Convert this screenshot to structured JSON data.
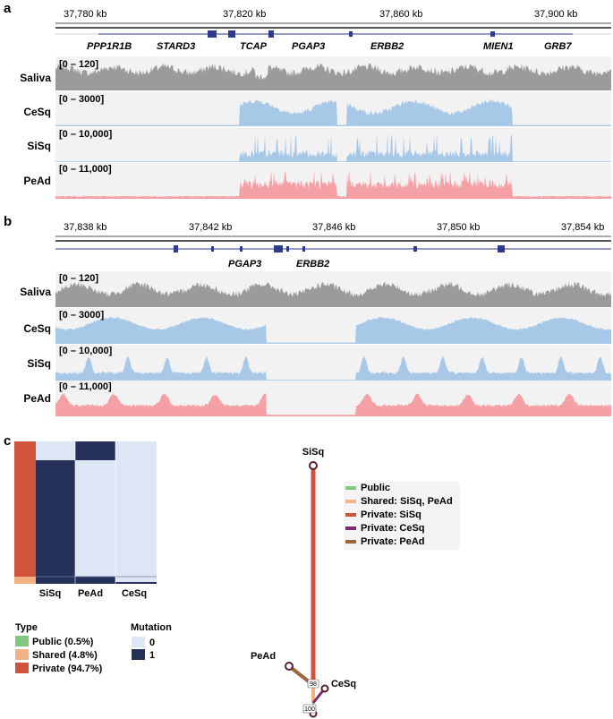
{
  "figure": {
    "panel_a": {
      "label": "a",
      "ruler": [
        "37,780 kb",
        "37,820 kb",
        "37,860 kb",
        "37,900 kb"
      ],
      "genes": [
        "PPP1R1B",
        "STARD3",
        "TCAP",
        "PGAP3",
        "ERBB2",
        "MIEN1",
        "GRB7"
      ],
      "tracks": [
        {
          "name": "Saliva",
          "range": "[0 – 120]",
          "color": "#9b9b9b"
        },
        {
          "name": "CeSq",
          "range": "[0 – 3000]",
          "color": "#a8c8e8"
        },
        {
          "name": "SiSq",
          "range": "[0 – 10,000]",
          "color": "#a8c8e8"
        },
        {
          "name": "PeAd",
          "range": "[0 – 11,000]",
          "color": "#f4a0a4"
        }
      ]
    },
    "panel_b": {
      "label": "b",
      "ruler": [
        "37,838 kb",
        "37,842 kb",
        "37,846 kb",
        "37,850 kb",
        "37,854 kb"
      ],
      "genes": [
        "PGAP3",
        "ERBB2"
      ],
      "tracks": [
        {
          "name": "Saliva",
          "range": "[0 – 120]",
          "color": "#9b9b9b"
        },
        {
          "name": "CeSq",
          "range": "[0 – 3000]",
          "color": "#a8c8e8"
        },
        {
          "name": "SiSq",
          "range": "[0 – 10,000]",
          "color": "#a8c8e8"
        },
        {
          "name": "PeAd",
          "range": "[0 – 11,000]",
          "color": "#f4a0a4"
        }
      ]
    },
    "panel_c": {
      "label": "c",
      "heatmap_columns": [
        "SiSq",
        "PeAd",
        "CeSq"
      ],
      "type_legend": {
        "title": "Type",
        "items": [
          {
            "label": "Public (0.5%)",
            "color": "#7fc97f"
          },
          {
            "label": "Shared (4.8%)",
            "color": "#f4b183"
          },
          {
            "label": "Private (94.7%)",
            "color": "#d0533b"
          }
        ]
      },
      "mutation_legend": {
        "title": "Mutation",
        "items": [
          {
            "label": "0",
            "color": "#dde6f4"
          },
          {
            "label": "1",
            "color": "#243058"
          }
        ]
      },
      "tree": {
        "nodes": [
          "SiSq",
          "PeAd",
          "CeSq"
        ],
        "branch_labels": [
          "98",
          "100"
        ],
        "legend": [
          {
            "label": "Public",
            "color": "#7fc97f"
          },
          {
            "label": "Shared: SiSq, PeAd",
            "color": "#f4b183"
          },
          {
            "label": "Private: SiSq",
            "color": "#d0533b"
          },
          {
            "label": "Private: CeSq",
            "color": "#7b2a6e"
          },
          {
            "label": "Private: PeAd",
            "color": "#a0633a"
          }
        ]
      }
    }
  }
}
